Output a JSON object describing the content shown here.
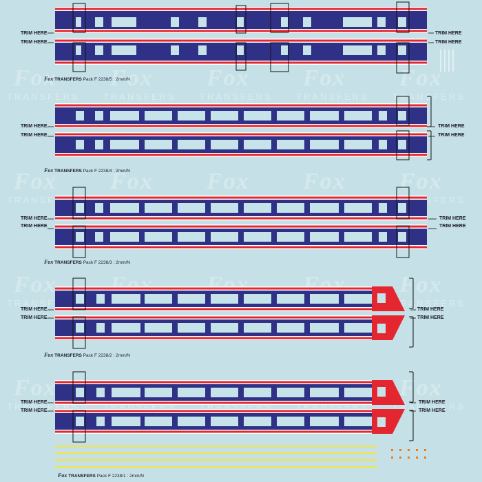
{
  "watermark": {
    "brand": "Fox",
    "sub": "TRANSFERS"
  },
  "trim_label": "TRIM HERE",
  "packs": [
    {
      "logo": "Fox",
      "brand": "TRANSFERS",
      "text": "Pack F 2238/5 : 2mm/N"
    },
    {
      "logo": "Fox",
      "brand": "TRANSFERS",
      "text": "Pack F 2238/4 : 2mm/N"
    },
    {
      "logo": "Fox",
      "brand": "TRANSFERS",
      "text": "Pack F 2238/3 : 2mm/N"
    },
    {
      "logo": "Fox",
      "brand": "TRANSFERS",
      "text": "Pack F 2238/2 : 2mm/N"
    },
    {
      "logo": "Fox",
      "brand": "TRANSFERS",
      "text": "Pack F 2238/1 : 2mm/N"
    }
  ],
  "colors": {
    "background": "#c5e1e7",
    "livery_blue": "#2e3186",
    "livery_red": "#e3262f",
    "livery_white": "#ffffff",
    "window": "#c7e3ea",
    "yellow": "#f4e542",
    "orange": "#f07a1a"
  }
}
